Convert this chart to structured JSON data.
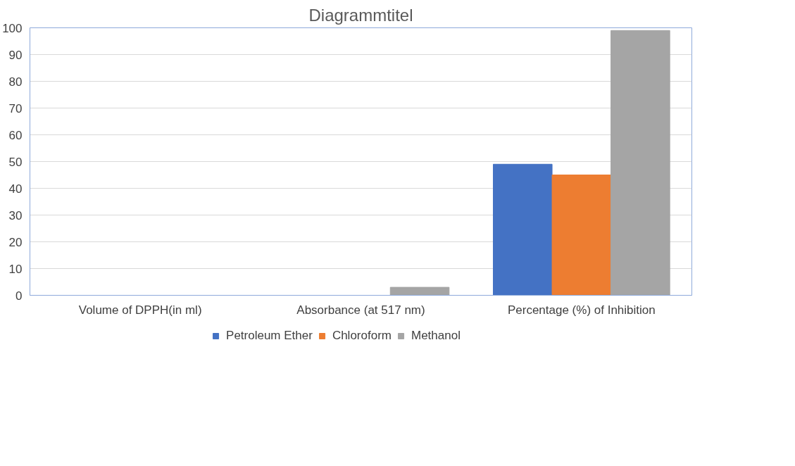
{
  "chart_data": {
    "type": "bar",
    "title": "Diagrammtitel",
    "categories": [
      "Volume of DPPH(in ml)",
      "Absorbance (at 517 nm)",
      "Percentage (%) of Inhibition"
    ],
    "series": [
      {
        "name": "Petroleum Ether",
        "color": "#4472c4",
        "values": [
          0,
          0,
          49
        ]
      },
      {
        "name": "Chloroform",
        "color": "#ed7d31",
        "values": [
          0,
          0,
          45
        ]
      },
      {
        "name": "Methanol",
        "color": "#a5a5a5",
        "values": [
          0,
          3,
          99
        ]
      }
    ],
    "ylim": [
      0,
      100
    ],
    "yticks": [
      0,
      10,
      20,
      30,
      40,
      50,
      60,
      70,
      80,
      90,
      100
    ],
    "grid": "y",
    "legend": "bottom"
  }
}
